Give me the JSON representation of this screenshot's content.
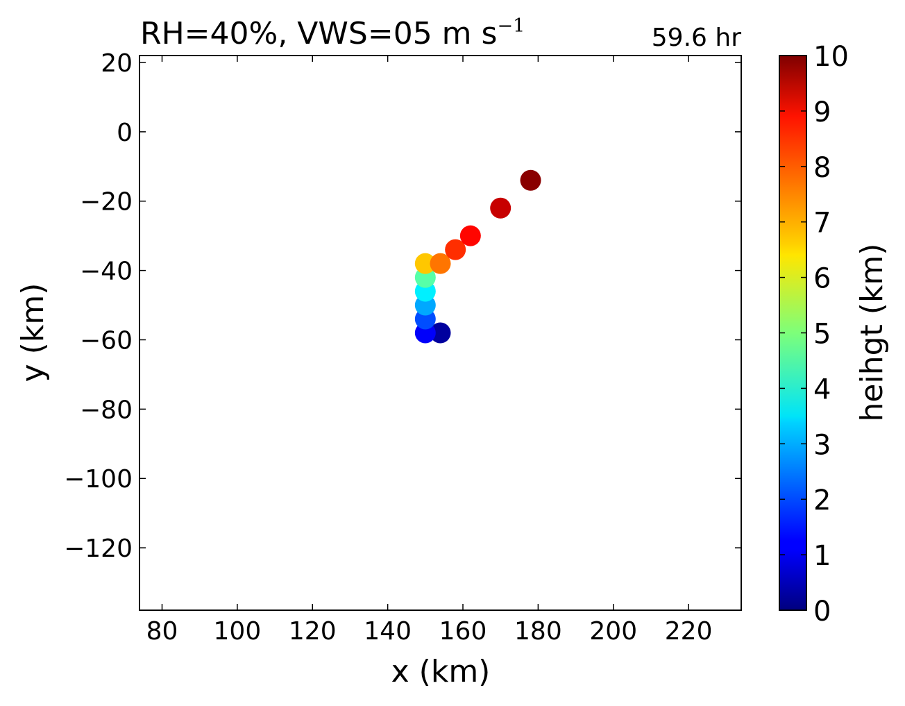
{
  "chart_data": {
    "type": "scatter",
    "title_main": "RH=40%, VWS=05 m s",
    "title_exp": "−1",
    "time_label": "59.6 hr",
    "time_label_color": "#0000ff",
    "xlabel": "x (km)",
    "ylabel": "y (km)",
    "xlim": [
      74,
      234
    ],
    "ylim": [
      -138,
      22
    ],
    "xticks": [
      80,
      100,
      120,
      140,
      160,
      180,
      200,
      220
    ],
    "yticks": [
      20,
      0,
      -20,
      -40,
      -60,
      -80,
      -100,
      -120
    ],
    "colorbar": {
      "label": "heihgt (km)",
      "range": [
        0,
        10
      ],
      "ticks": [
        0,
        1,
        2,
        3,
        4,
        5,
        6,
        7,
        8,
        9,
        10
      ],
      "colormap": "jet"
    },
    "points": [
      {
        "x": 154,
        "y": -58,
        "height": 0.3
      },
      {
        "x": 150,
        "y": -58,
        "height": 1.2
      },
      {
        "x": 150,
        "y": -54,
        "height": 2.0
      },
      {
        "x": 150,
        "y": -50,
        "height": 2.9
      },
      {
        "x": 150,
        "y": -46,
        "height": 3.6
      },
      {
        "x": 150,
        "y": -42,
        "height": 4.6
      },
      {
        "x": 150,
        "y": -38,
        "height": 6.8
      },
      {
        "x": 154,
        "y": -38,
        "height": 7.6
      },
      {
        "x": 158,
        "y": -34,
        "height": 8.3
      },
      {
        "x": 162,
        "y": -30,
        "height": 8.7
      },
      {
        "x": 170,
        "y": -22,
        "height": 9.3
      },
      {
        "x": 178,
        "y": -14,
        "height": 9.9
      }
    ]
  }
}
